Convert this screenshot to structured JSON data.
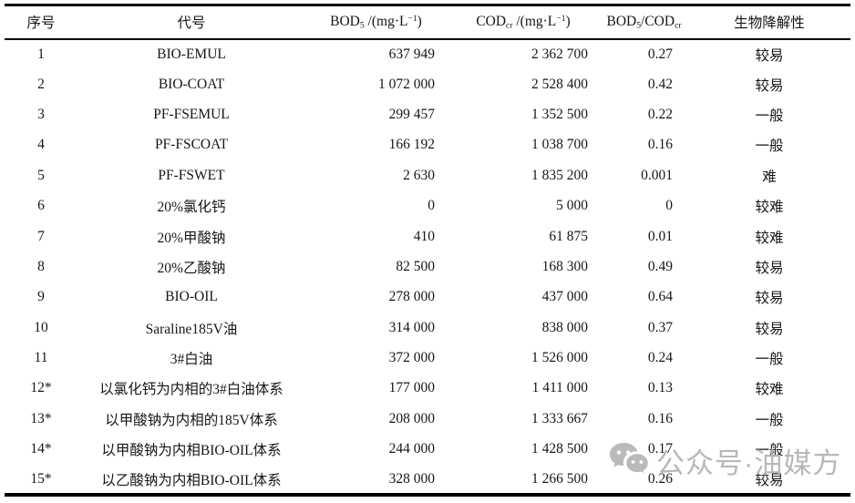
{
  "page": {
    "background": "#ffffff",
    "text_color": "#161616",
    "watermark_color": "#b1b1b1"
  },
  "table": {
    "headers_rich": {
      "no": [
        [
          "序号",
          ""
        ]
      ],
      "code": [
        [
          "代号",
          ""
        ]
      ],
      "bod5": [
        [
          "BOD",
          ""
        ],
        [
          "5",
          "sub"
        ],
        [
          " /(mg·L",
          ""
        ],
        [
          "−1",
          "sup"
        ],
        [
          ")",
          ""
        ]
      ],
      "codcr": [
        [
          "COD",
          ""
        ],
        [
          "cr",
          "sub"
        ],
        [
          " /(mg·L",
          ""
        ],
        [
          "−1",
          "sup"
        ],
        [
          ")",
          ""
        ]
      ],
      "ratio": [
        [
          "BOD",
          ""
        ],
        [
          "5",
          "sub"
        ],
        [
          "/COD",
          ""
        ],
        [
          "cr",
          "sub"
        ]
      ],
      "biodeg": [
        [
          "生物降解性",
          ""
        ]
      ]
    },
    "rows": [
      {
        "no": "1",
        "code": "BIO-EMUL",
        "bod5": "637 949",
        "codcr": "2 362 700",
        "ratio": "0.27",
        "biodeg": "较易"
      },
      {
        "no": "2",
        "code": "BIO-COAT",
        "bod5": "1 072 000",
        "codcr": "2 528 400",
        "ratio": "0.42",
        "biodeg": "较易"
      },
      {
        "no": "3",
        "code": "PF-FSEMUL",
        "bod5": "299 457",
        "codcr": "1 352 500",
        "ratio": "0.22",
        "biodeg": "一般"
      },
      {
        "no": "4",
        "code": "PF-FSCOAT",
        "bod5": "166 192",
        "codcr": "1 038 700",
        "ratio": "0.16",
        "biodeg": "一般"
      },
      {
        "no": "5",
        "code": "PF-FSWET",
        "bod5": "2 630",
        "codcr": "1 835 200",
        "ratio": "0.001",
        "biodeg": "难"
      },
      {
        "no": "6",
        "code": "20%氯化钙",
        "bod5": "0",
        "codcr": "5 000",
        "ratio": "0",
        "biodeg": "较难"
      },
      {
        "no": "7",
        "code": "20%甲酸钠",
        "bod5": "410",
        "codcr": "61 875",
        "ratio": "0.01",
        "biodeg": "较难"
      },
      {
        "no": "8",
        "code": "20%乙酸钠",
        "bod5": "82 500",
        "codcr": "168 300",
        "ratio": "0.49",
        "biodeg": "较易"
      },
      {
        "no": "9",
        "code": "BIO-OIL",
        "bod5": "278 000",
        "codcr": "437 000",
        "ratio": "0.64",
        "biodeg": "较易"
      },
      {
        "no": "10",
        "code": "Saraline185V油",
        "bod5": "314 000",
        "codcr": "838 000",
        "ratio": "0.37",
        "biodeg": "较易"
      },
      {
        "no": "11",
        "code": "3#白油",
        "bod5": "372 000",
        "codcr": "1 526 000",
        "ratio": "0.24",
        "biodeg": "一般"
      },
      {
        "no": "12*",
        "code": "以氯化钙为内相的3#白油体系",
        "bod5": "177 000",
        "codcr": "1 411 000",
        "ratio": "0.13",
        "biodeg": "较难"
      },
      {
        "no": "13*",
        "code": "以甲酸钠为内相的185V体系",
        "bod5": "208 000",
        "codcr": "1 333 667",
        "ratio": "0.16",
        "biodeg": "一般"
      },
      {
        "no": "14*",
        "code": "以甲酸钠为内相BIO-OIL体系",
        "bod5": "244 000",
        "codcr": "1 428 500",
        "ratio": "0.17",
        "biodeg": "一般"
      },
      {
        "no": "15*",
        "code": "以乙酸钠为内相BIO-OIL体系",
        "bod5": "328 000",
        "codcr": "1 266 500",
        "ratio": "0.26",
        "biodeg": "较易"
      }
    ]
  },
  "watermark": {
    "icon": "wechat-icon",
    "text": "公众号·油媒方"
  }
}
